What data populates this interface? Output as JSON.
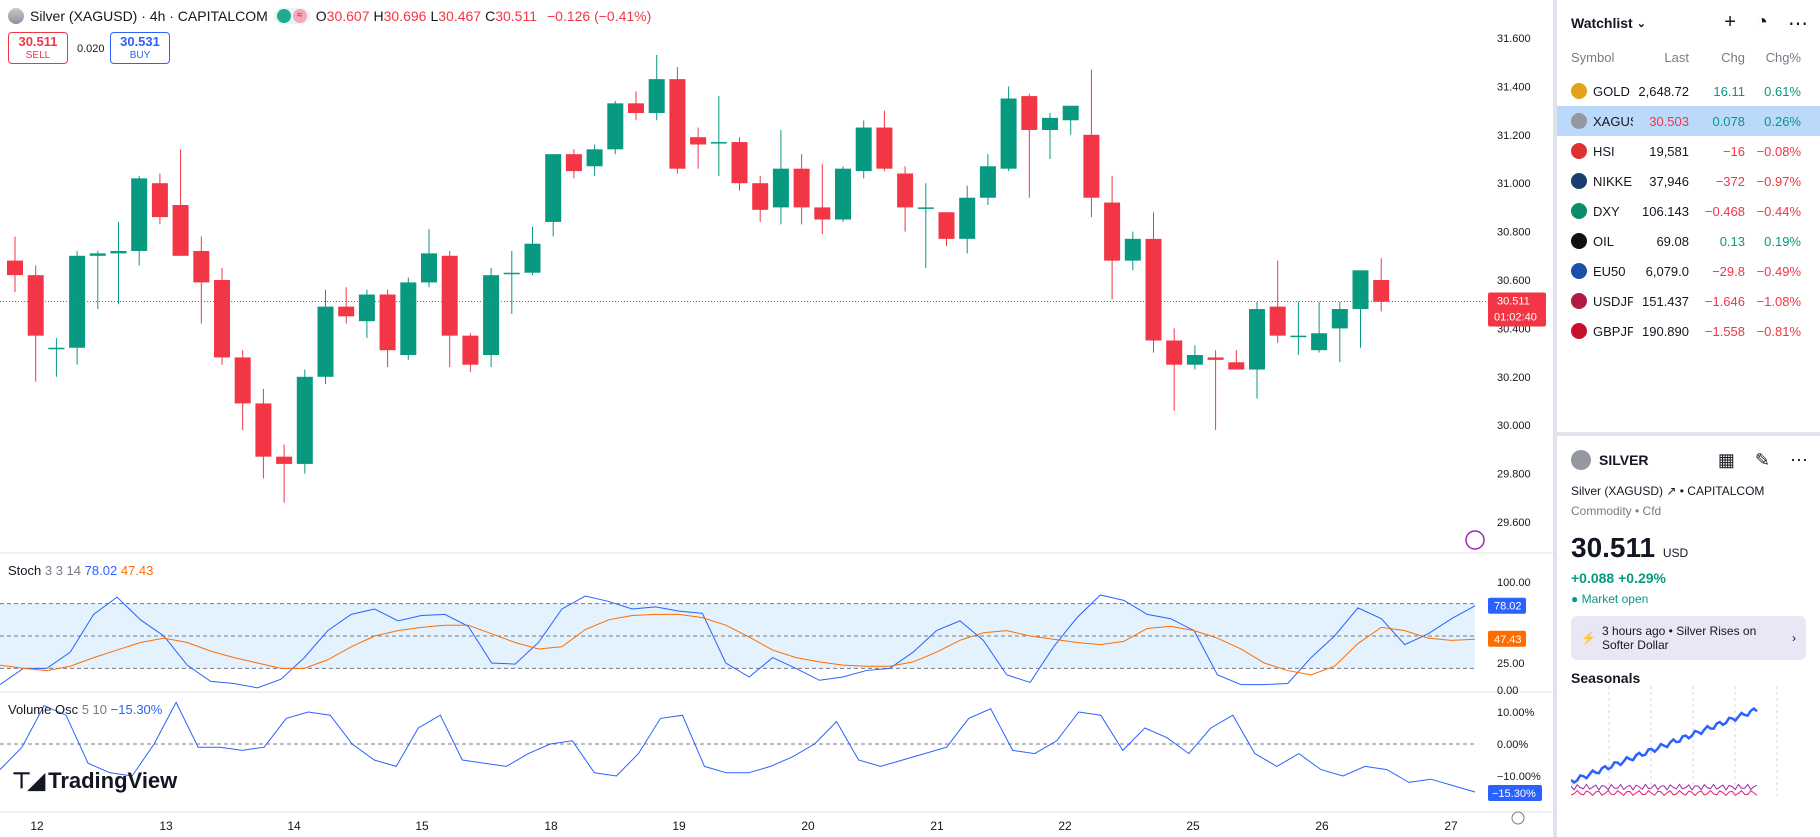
{
  "header": {
    "symbol_title": "Silver (XAGUSD) · 4h · CAPITALCOM",
    "ohlc": [
      {
        "k": "O",
        "v": "30.607"
      },
      {
        "k": "H",
        "v": "30.696"
      },
      {
        "k": "L",
        "v": "30.467"
      },
      {
        "k": "C",
        "v": "30.511"
      }
    ],
    "change": "−0.126 (−0.41%)"
  },
  "trade": {
    "sell_price": "30.511",
    "sell_label": "SELL",
    "spread": "0.020",
    "buy_price": "30.531",
    "buy_label": "BUY"
  },
  "price_axis": [
    "31.600",
    "31.400",
    "31.200",
    "31.000",
    "30.800",
    "30.600",
    "30.400",
    "30.200",
    "30.000",
    "29.800",
    "29.600"
  ],
  "current_price": {
    "value": "30.511",
    "countdown": "01:02:40"
  },
  "x_axis_labels": [
    "12",
    "13",
    "14",
    "15",
    "18",
    "19",
    "20",
    "21",
    "22",
    "25",
    "26",
    "27"
  ],
  "stoch": {
    "label": "Stoch",
    "params": "3 3 14",
    "k_value": "78.02",
    "d_value": "47.43",
    "axis": [
      "100.00",
      "75.00",
      "50.00",
      "25.00",
      "0.00"
    ]
  },
  "volosc": {
    "label": "Volume Osc",
    "params": "5 10",
    "value": "−15.30%",
    "axis": [
      "10.00%",
      "0.00%",
      "−10.00%"
    ]
  },
  "logo_text": "TradingView",
  "chart_data": {
    "type": "candlestick",
    "symbol": "XAGUSD",
    "interval": "4h",
    "candles": [
      [
        30.68,
        30.78,
        30.55,
        30.62
      ],
      [
        30.62,
        30.66,
        30.18,
        30.37
      ],
      [
        30.32,
        30.36,
        30.2,
        30.32
      ],
      [
        30.32,
        30.72,
        30.25,
        30.7
      ],
      [
        30.7,
        30.72,
        30.48,
        30.71
      ],
      [
        30.71,
        30.84,
        30.5,
        30.72
      ],
      [
        30.72,
        31.03,
        30.66,
        31.02
      ],
      [
        31.0,
        31.04,
        30.83,
        30.86
      ],
      [
        30.91,
        31.14,
        30.7,
        30.7
      ],
      [
        30.72,
        30.78,
        30.42,
        30.59
      ],
      [
        30.6,
        30.65,
        30.25,
        30.28
      ],
      [
        30.28,
        30.31,
        29.98,
        30.09
      ],
      [
        30.09,
        30.15,
        29.78,
        29.87
      ],
      [
        29.87,
        29.92,
        29.68,
        29.84
      ],
      [
        29.84,
        30.23,
        29.8,
        30.2
      ],
      [
        30.2,
        30.56,
        30.17,
        30.49
      ],
      [
        30.49,
        30.57,
        30.42,
        30.45
      ],
      [
        30.43,
        30.56,
        30.36,
        30.54
      ],
      [
        30.54,
        30.56,
        30.24,
        30.31
      ],
      [
        30.29,
        30.61,
        30.27,
        30.59
      ],
      [
        30.59,
        30.81,
        30.57,
        30.71
      ],
      [
        30.7,
        30.72,
        30.24,
        30.37
      ],
      [
        30.37,
        30.38,
        30.22,
        30.25
      ],
      [
        30.29,
        30.65,
        30.24,
        30.62
      ],
      [
        30.63,
        30.72,
        30.46,
        30.63
      ],
      [
        30.63,
        30.82,
        30.62,
        30.75
      ],
      [
        30.84,
        31.12,
        30.78,
        31.12
      ],
      [
        31.12,
        31.14,
        31.02,
        31.05
      ],
      [
        31.07,
        31.16,
        31.03,
        31.14
      ],
      [
        31.14,
        31.34,
        31.12,
        31.33
      ],
      [
        31.33,
        31.38,
        31.26,
        31.29
      ],
      [
        31.29,
        31.53,
        31.26,
        31.43
      ],
      [
        31.43,
        31.48,
        31.04,
        31.06
      ],
      [
        31.19,
        31.23,
        31.06,
        31.16
      ],
      [
        31.17,
        31.36,
        31.03,
        31.17
      ],
      [
        31.17,
        31.19,
        30.97,
        31.0
      ],
      [
        31.0,
        31.03,
        30.84,
        30.89
      ],
      [
        30.9,
        31.22,
        30.83,
        31.06
      ],
      [
        31.06,
        31.12,
        30.83,
        30.9
      ],
      [
        30.9,
        31.08,
        30.79,
        30.85
      ],
      [
        30.85,
        31.07,
        30.84,
        31.06
      ],
      [
        31.05,
        31.26,
        31.02,
        31.23
      ],
      [
        31.23,
        31.3,
        31.05,
        31.06
      ],
      [
        31.04,
        31.07,
        30.8,
        30.9
      ],
      [
        30.9,
        31.0,
        30.65,
        30.9
      ],
      [
        30.88,
        30.88,
        30.74,
        30.77
      ],
      [
        30.77,
        30.99,
        30.71,
        30.94
      ],
      [
        30.94,
        31.12,
        30.91,
        31.07
      ],
      [
        31.06,
        31.4,
        31.05,
        31.35
      ],
      [
        31.36,
        31.37,
        30.94,
        31.22
      ],
      [
        31.22,
        31.29,
        31.1,
        31.27
      ],
      [
        31.26,
        31.32,
        31.2,
        31.32
      ],
      [
        31.2,
        31.47,
        30.86,
        30.94
      ],
      [
        30.92,
        31.03,
        30.52,
        30.68
      ],
      [
        30.68,
        30.8,
        30.64,
        30.77
      ],
      [
        30.77,
        30.88,
        30.3,
        30.35
      ],
      [
        30.35,
        30.4,
        30.06,
        30.25
      ],
      [
        30.25,
        30.33,
        30.23,
        30.29
      ],
      [
        30.28,
        30.31,
        29.98,
        30.27
      ],
      [
        30.26,
        30.31,
        30.24,
        30.23
      ],
      [
        30.23,
        30.51,
        30.11,
        30.48
      ],
      [
        30.49,
        30.68,
        30.34,
        30.37
      ],
      [
        30.37,
        30.51,
        30.29,
        30.37
      ],
      [
        30.31,
        30.51,
        30.3,
        30.38
      ],
      [
        30.4,
        30.51,
        30.26,
        30.48
      ],
      [
        30.48,
        30.64,
        30.32,
        30.64
      ],
      [
        30.6,
        30.69,
        30.47,
        30.51
      ]
    ],
    "stoch_k": [
      5,
      20,
      20,
      35,
      70,
      86,
      65,
      50,
      23,
      8,
      6,
      2,
      10,
      30,
      55,
      70,
      75,
      64,
      69,
      70,
      59,
      25,
      24,
      44,
      75,
      87,
      82,
      75,
      77,
      73,
      71,
      25,
      12,
      30,
      20,
      9,
      12,
      18,
      20,
      35,
      55,
      64,
      46,
      14,
      7,
      40,
      67,
      88,
      83,
      70,
      66,
      55,
      14,
      5,
      5,
      6,
      30,
      50,
      76,
      66,
      42,
      52,
      66,
      78
    ],
    "stoch_d": [
      23,
      20,
      18,
      22,
      30,
      37,
      44,
      48,
      44,
      36,
      30,
      25,
      20,
      20,
      28,
      40,
      50,
      55,
      58,
      60,
      60,
      52,
      44,
      38,
      40,
      56,
      65,
      69,
      70,
      70,
      67,
      60,
      49,
      37,
      30,
      26,
      23,
      22,
      22,
      26,
      35,
      46,
      53,
      55,
      50,
      47,
      44,
      42,
      45,
      57,
      59,
      55,
      48,
      38,
      25,
      18,
      14,
      22,
      43,
      58,
      55,
      48,
      46,
      47
    ],
    "vol_osc": [
      -8,
      -1,
      12,
      9,
      -6,
      -9,
      -10,
      0,
      13,
      -1,
      -1,
      -2,
      -1,
      8,
      10,
      9,
      0,
      -5,
      -7,
      5,
      9,
      -5,
      -6,
      -7,
      -3,
      0,
      1,
      -9,
      -10,
      -3,
      8,
      9,
      -7,
      -9,
      -9,
      -7,
      -4,
      0,
      7,
      -5,
      -7,
      -5,
      -3,
      -1,
      8,
      11,
      -2,
      -3,
      1,
      10,
      9,
      -2,
      5,
      2,
      -3,
      5,
      9,
      -3,
      -7,
      -3,
      -8,
      -10,
      -7,
      -8,
      -12,
      -11,
      -13,
      -15
    ]
  },
  "watchlist": {
    "title": "Watchlist",
    "cols": [
      "Symbol",
      "Last",
      "Chg",
      "Chg%"
    ],
    "rows": [
      {
        "sym": "GOLD",
        "last": "2,648.72",
        "chg": "16.11",
        "chgp": "0.61%",
        "icon": "gold-icon",
        "color": "#e5a11b",
        "dir": "pos"
      },
      {
        "sym": "XAGUSD",
        "last": "30.503",
        "chg": "0.078",
        "chgp": "0.26%",
        "icon": "silver-icon",
        "color": "#9598a1",
        "dir": "pos",
        "sel": true
      },
      {
        "sym": "HSI",
        "last": "19,581",
        "chg": "−16",
        "chgp": "−0.08%",
        "icon": "hsi-icon",
        "color": "#e03131",
        "dir": "neg"
      },
      {
        "sym": "NIKKEI",
        "last": "37,946",
        "chg": "−372",
        "chgp": "−0.97%",
        "icon": "nikkei-icon",
        "color": "#1a3c6e",
        "dir": "neg"
      },
      {
        "sym": "DXY",
        "last": "106.143",
        "chg": "−0.468",
        "chgp": "−0.44%",
        "icon": "dollar-icon",
        "color": "#0b8c6a",
        "dir": "neg"
      },
      {
        "sym": "OIL",
        "last": "69.08",
        "chg": "0.13",
        "chgp": "0.19%",
        "icon": "oil-drop-icon",
        "color": "#111",
        "dir": "pos"
      },
      {
        "sym": "EU50",
        "last": "6,079.0",
        "chg": "−29.8",
        "chgp": "−0.49%",
        "icon": "eu-flag-icon",
        "color": "#1c4fa8",
        "dir": "neg"
      },
      {
        "sym": "USDJPY",
        "last": "151.437",
        "chg": "−1.646",
        "chgp": "−1.08%",
        "icon": "us-flag-icon",
        "color": "#b31942",
        "dir": "neg"
      },
      {
        "sym": "GBPJPY",
        "last": "190.890",
        "chg": "−1.558",
        "chgp": "−0.81%",
        "icon": "uk-flag-icon",
        "color": "#c8102e",
        "dir": "neg"
      }
    ]
  },
  "detail": {
    "title": "SILVER",
    "full_name": "Silver (XAGUSD)",
    "exchange": "CAPITALCOM",
    "category": "Commodity • Cfd",
    "price": "30.511",
    "unit": "USD",
    "change": "+0.088",
    "change_pct": "+0.29%",
    "status": "Market open",
    "news_time": "3 hours ago",
    "news_title": "Silver Rises on Softer Dollar",
    "seasonals": "Seasonals"
  }
}
